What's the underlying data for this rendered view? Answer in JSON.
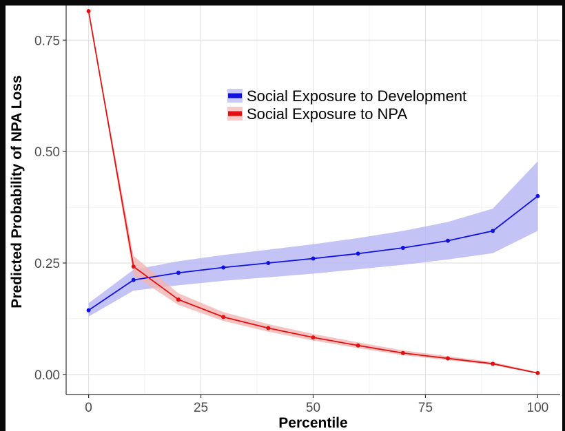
{
  "chart_data": {
    "type": "line",
    "title": "",
    "xlabel": "Percentile",
    "ylabel": "Predicted Probability of NPA Loss",
    "xlim": [
      -5,
      105
    ],
    "ylim": [
      -0.045,
      0.84
    ],
    "x_ticks": [
      0,
      25,
      50,
      75,
      100
    ],
    "x_tick_labels": [
      "0",
      "25",
      "50",
      "75",
      "100"
    ],
    "y_ticks": [
      0.0,
      0.25,
      0.5,
      0.75
    ],
    "y_tick_labels": [
      "0.00",
      "0.25",
      "0.50",
      "0.75"
    ],
    "grid": true,
    "legend_position": "top-right",
    "series": [
      {
        "name": "Social Exposure to Development",
        "color": "#1010e0",
        "band_color": "#b4b4f4",
        "x": [
          0,
          10,
          20,
          30,
          40,
          50,
          60,
          70,
          80,
          90,
          100
        ],
        "y": [
          0.144,
          0.212,
          0.228,
          0.24,
          0.25,
          0.26,
          0.271,
          0.284,
          0.3,
          0.322,
          0.4
        ],
        "lower": [
          0.13,
          0.188,
          0.2,
          0.21,
          0.218,
          0.226,
          0.236,
          0.246,
          0.258,
          0.272,
          0.322
        ],
        "upper": [
          0.16,
          0.235,
          0.254,
          0.268,
          0.28,
          0.292,
          0.306,
          0.322,
          0.342,
          0.372,
          0.478
        ]
      },
      {
        "name": "Social Exposure to NPA",
        "color": "#e01010",
        "band_color": "#f4b4b4",
        "x": [
          0,
          10,
          20,
          30,
          40,
          50,
          60,
          70,
          80,
          90,
          100
        ],
        "y": [
          0.815,
          0.242,
          0.168,
          0.129,
          0.104,
          0.083,
          0.065,
          0.048,
          0.036,
          0.024,
          0.003
        ],
        "lower": [
          0.815,
          0.222,
          0.156,
          0.12,
          0.096,
          0.076,
          0.059,
          0.043,
          0.032,
          0.021,
          0.002
        ],
        "upper": [
          0.815,
          0.266,
          0.182,
          0.14,
          0.113,
          0.091,
          0.072,
          0.054,
          0.041,
          0.028,
          0.005
        ]
      }
    ]
  }
}
